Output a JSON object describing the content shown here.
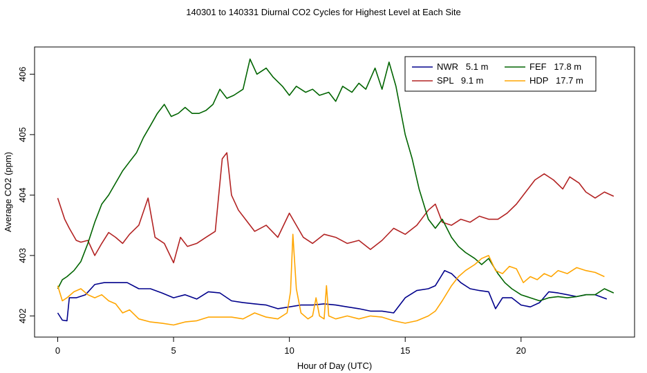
{
  "chart_data": {
    "type": "line",
    "title": "140301  to  140331 Diurnal CO2 Cycles for Highest Level at Each Site",
    "xlabel": "Hour of Day (UTC)",
    "ylabel": "Average CO2 (ppm)",
    "xlim": [
      -1.0,
      24.9
    ],
    "ylim": [
      401.65,
      406.45
    ],
    "xticks": [
      "0",
      "5",
      "10",
      "15",
      "20"
    ],
    "xtick_values": [
      0,
      5,
      10,
      15,
      20
    ],
    "yticks": [
      "402",
      "403",
      "404",
      "405",
      "406"
    ],
    "ytick_values": [
      402,
      403,
      404,
      405,
      406
    ],
    "grid": false,
    "legend_position": "top-right",
    "series": [
      {
        "name": "NWR   5.1 m",
        "color": "#00008b",
        "x": [
          0,
          0.2,
          0.4,
          0.5,
          0.8,
          1.2,
          1.6,
          2.0,
          2.5,
          3.0,
          3.5,
          4.0,
          4.5,
          5.0,
          5.5,
          6.0,
          6.5,
          7.0,
          7.5,
          8.0,
          8.5,
          9.0,
          9.5,
          10.0,
          10.5,
          11.0,
          11.5,
          12.0,
          12.5,
          13.0,
          13.5,
          14.0,
          14.5,
          15.0,
          15.5,
          16.0,
          16.3,
          16.7,
          17.0,
          17.4,
          17.8,
          18.2,
          18.6,
          18.9,
          19.2,
          19.6,
          20.0,
          20.4,
          20.8,
          21.2,
          21.6,
          22.0,
          22.4,
          22.8,
          23.2,
          23.7
        ],
        "values": [
          402.05,
          401.93,
          401.92,
          402.3,
          402.3,
          402.35,
          402.52,
          402.55,
          402.55,
          402.55,
          402.45,
          402.45,
          402.38,
          402.3,
          402.35,
          402.28,
          402.4,
          402.38,
          402.25,
          402.22,
          402.2,
          402.18,
          402.12,
          402.15,
          402.18,
          402.18,
          402.2,
          402.18,
          402.15,
          402.12,
          402.08,
          402.08,
          402.05,
          402.3,
          402.42,
          402.45,
          402.5,
          402.75,
          402.7,
          402.55,
          402.45,
          402.42,
          402.4,
          402.12,
          402.3,
          402.3,
          402.18,
          402.15,
          402.22,
          402.4,
          402.38,
          402.35,
          402.32,
          402.35,
          402.35,
          402.28
        ]
      },
      {
        "name": "SPL   9.1 m",
        "color": "#b22222",
        "x": [
          0,
          0.3,
          0.5,
          0.8,
          1.0,
          1.3,
          1.6,
          1.9,
          2.2,
          2.5,
          2.8,
          3.1,
          3.5,
          3.9,
          4.2,
          4.6,
          5.0,
          5.3,
          5.6,
          6.0,
          6.4,
          6.8,
          7.1,
          7.3,
          7.5,
          7.8,
          8.1,
          8.5,
          9.0,
          9.5,
          10.0,
          10.3,
          10.6,
          11.0,
          11.5,
          12.0,
          12.5,
          13.0,
          13.5,
          14.0,
          14.5,
          15.0,
          15.5,
          16.0,
          16.3,
          16.6,
          17.0,
          17.4,
          17.8,
          18.2,
          18.6,
          19.0,
          19.4,
          19.8,
          20.2,
          20.6,
          21.0,
          21.4,
          21.8,
          22.1,
          22.5,
          22.8,
          23.2,
          23.6,
          24.0
        ],
        "values": [
          403.95,
          403.6,
          403.45,
          403.25,
          403.22,
          403.25,
          403.0,
          403.2,
          403.38,
          403.3,
          403.2,
          403.35,
          403.5,
          403.95,
          403.3,
          403.2,
          402.88,
          403.3,
          403.15,
          403.2,
          403.3,
          403.4,
          404.6,
          404.7,
          404.0,
          403.75,
          403.6,
          403.4,
          403.5,
          403.3,
          403.7,
          403.5,
          403.3,
          403.2,
          403.35,
          403.3,
          403.2,
          403.25,
          403.1,
          403.25,
          403.45,
          403.35,
          403.5,
          403.75,
          403.85,
          403.55,
          403.5,
          403.6,
          403.55,
          403.65,
          403.6,
          403.6,
          403.7,
          403.85,
          404.05,
          404.25,
          404.35,
          404.25,
          404.1,
          404.3,
          404.2,
          404.05,
          403.95,
          404.05,
          403.98
        ]
      },
      {
        "name": "FEF   17.8 m",
        "color": "#006400",
        "x": [
          0,
          0.2,
          0.4,
          0.7,
          1.0,
          1.3,
          1.6,
          1.9,
          2.2,
          2.5,
          2.8,
          3.1,
          3.4,
          3.7,
          4.0,
          4.3,
          4.6,
          4.9,
          5.2,
          5.5,
          5.8,
          6.1,
          6.4,
          6.7,
          7.0,
          7.3,
          7.6,
          8.0,
          8.3,
          8.6,
          9.0,
          9.3,
          9.7,
          10.0,
          10.3,
          10.7,
          11.0,
          11.3,
          11.7,
          12.0,
          12.3,
          12.7,
          13.0,
          13.3,
          13.7,
          14.0,
          14.3,
          14.6,
          15.0,
          15.3,
          15.6,
          16.0,
          16.3,
          16.6,
          17.0,
          17.3,
          17.6,
          18.0,
          18.3,
          18.6,
          19.0,
          19.3,
          19.6,
          20.0,
          20.4,
          20.8,
          21.2,
          21.6,
          22.0,
          22.4,
          22.8,
          23.2,
          23.6,
          24.0
        ],
        "values": [
          402.45,
          402.6,
          402.65,
          402.75,
          402.9,
          403.2,
          403.55,
          403.85,
          404.0,
          404.2,
          404.4,
          404.55,
          404.7,
          404.95,
          405.15,
          405.35,
          405.5,
          405.3,
          405.35,
          405.45,
          405.35,
          405.35,
          405.4,
          405.5,
          405.75,
          405.6,
          405.65,
          405.75,
          406.25,
          406.0,
          406.1,
          405.95,
          405.8,
          405.65,
          405.8,
          405.7,
          405.75,
          405.65,
          405.7,
          405.55,
          405.8,
          405.7,
          405.85,
          405.75,
          406.1,
          405.75,
          406.2,
          405.8,
          405.0,
          404.6,
          404.1,
          403.6,
          403.45,
          403.6,
          403.3,
          403.15,
          403.05,
          402.95,
          402.85,
          402.95,
          402.7,
          402.55,
          402.45,
          402.35,
          402.3,
          402.25,
          402.3,
          402.32,
          402.3,
          402.32,
          402.35,
          402.35,
          402.45,
          402.38
        ]
      },
      {
        "name": "HDP   17.7 m",
        "color": "#ffa500",
        "x": [
          0,
          0.2,
          0.4,
          0.7,
          1.0,
          1.3,
          1.6,
          1.9,
          2.2,
          2.5,
          2.8,
          3.1,
          3.5,
          4.0,
          4.5,
          5.0,
          5.5,
          6.0,
          6.5,
          7.0,
          7.5,
          8.0,
          8.5,
          9.0,
          9.5,
          9.9,
          10.05,
          10.15,
          10.3,
          10.5,
          10.8,
          11.0,
          11.15,
          11.3,
          11.5,
          11.6,
          11.7,
          12.0,
          12.5,
          13.0,
          13.5,
          14.0,
          14.5,
          15.0,
          15.5,
          16.0,
          16.3,
          16.6,
          17.0,
          17.3,
          17.6,
          18.0,
          18.3,
          18.6,
          18.9,
          19.2,
          19.5,
          19.8,
          20.1,
          20.4,
          20.7,
          21.0,
          21.3,
          21.6,
          22.0,
          22.4,
          22.8,
          23.2,
          23.6
        ],
        "values": [
          402.5,
          402.25,
          402.3,
          402.4,
          402.45,
          402.35,
          402.3,
          402.35,
          402.25,
          402.2,
          402.05,
          402.1,
          401.95,
          401.9,
          401.88,
          401.85,
          401.9,
          401.92,
          401.98,
          401.98,
          401.98,
          401.95,
          402.05,
          401.98,
          401.95,
          402.05,
          402.4,
          403.35,
          402.45,
          402.05,
          401.95,
          402.0,
          402.3,
          402.0,
          401.95,
          402.5,
          402.0,
          401.95,
          402.0,
          401.95,
          402.0,
          401.98,
          401.92,
          401.88,
          401.92,
          402.0,
          402.08,
          402.25,
          402.5,
          402.65,
          402.75,
          402.85,
          402.95,
          403.0,
          402.75,
          402.7,
          402.82,
          402.78,
          402.55,
          402.65,
          402.6,
          402.7,
          402.65,
          402.75,
          402.7,
          402.8,
          402.75,
          402.72,
          402.65
        ]
      }
    ]
  }
}
